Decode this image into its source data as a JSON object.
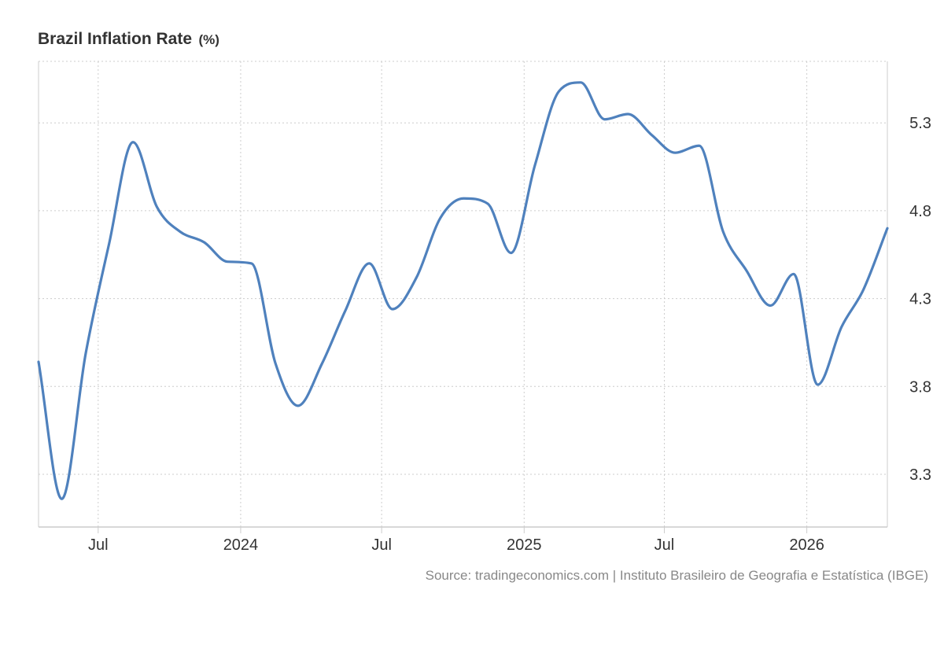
{
  "chart_data": {
    "type": "line",
    "title": "Brazil Inflation Rate",
    "unit": "(%)",
    "source": "Source: tradingeconomics.com | Instituto Brasileiro de Geografia e Estatística (IBGE)",
    "ylim": [
      3.0,
      5.65
    ],
    "y_ticks": [
      3.3,
      3.8,
      4.3,
      4.8,
      5.3
    ],
    "y_tick_labels": [
      "3.3",
      "3.8",
      "4.3",
      "4.8",
      "5.3"
    ],
    "x_range": [
      "2023-04-15",
      "2026-04-15"
    ],
    "x_ticks": [
      "2023-07-01",
      "2024-01-01",
      "2024-07-01",
      "2025-01-01",
      "2025-07-01",
      "2026-01-01"
    ],
    "x_tick_labels": [
      "Jul",
      "2024",
      "Jul",
      "2025",
      "Jul",
      "2026"
    ],
    "grid": true,
    "line_color": "#4f81bd",
    "series": [
      {
        "x": [
          "2023-04-15",
          "2023-05-15",
          "2023-06-15",
          "2023-07-15",
          "2023-08-15",
          "2023-09-15",
          "2023-10-15",
          "2023-11-15",
          "2023-12-15",
          "2024-01-15",
          "2024-02-15",
          "2024-03-15",
          "2024-04-15",
          "2024-05-15",
          "2024-06-15",
          "2024-07-15",
          "2024-08-15",
          "2024-09-15",
          "2024-10-15",
          "2024-11-15",
          "2024-12-15",
          "2025-01-15",
          "2025-02-15",
          "2025-03-15",
          "2025-04-15",
          "2025-05-15",
          "2025-06-15",
          "2025-07-15",
          "2025-08-15",
          "2025-09-15",
          "2025-10-15",
          "2025-11-15",
          "2025-12-15",
          "2026-01-15",
          "2026-02-15",
          "2026-03-15",
          "2026-04-15"
        ],
        "values": [
          3.94,
          3.16,
          3.99,
          4.61,
          5.19,
          4.82,
          4.68,
          4.62,
          4.51,
          4.5,
          3.93,
          3.69,
          3.93,
          4.23,
          4.5,
          4.24,
          4.42,
          4.76,
          4.87,
          4.84,
          4.56,
          5.06,
          5.48,
          5.53,
          5.32,
          5.35,
          5.23,
          5.13,
          5.17,
          4.68,
          4.46,
          4.26,
          4.44,
          3.81,
          4.14,
          4.35,
          4.7
        ]
      }
    ]
  }
}
